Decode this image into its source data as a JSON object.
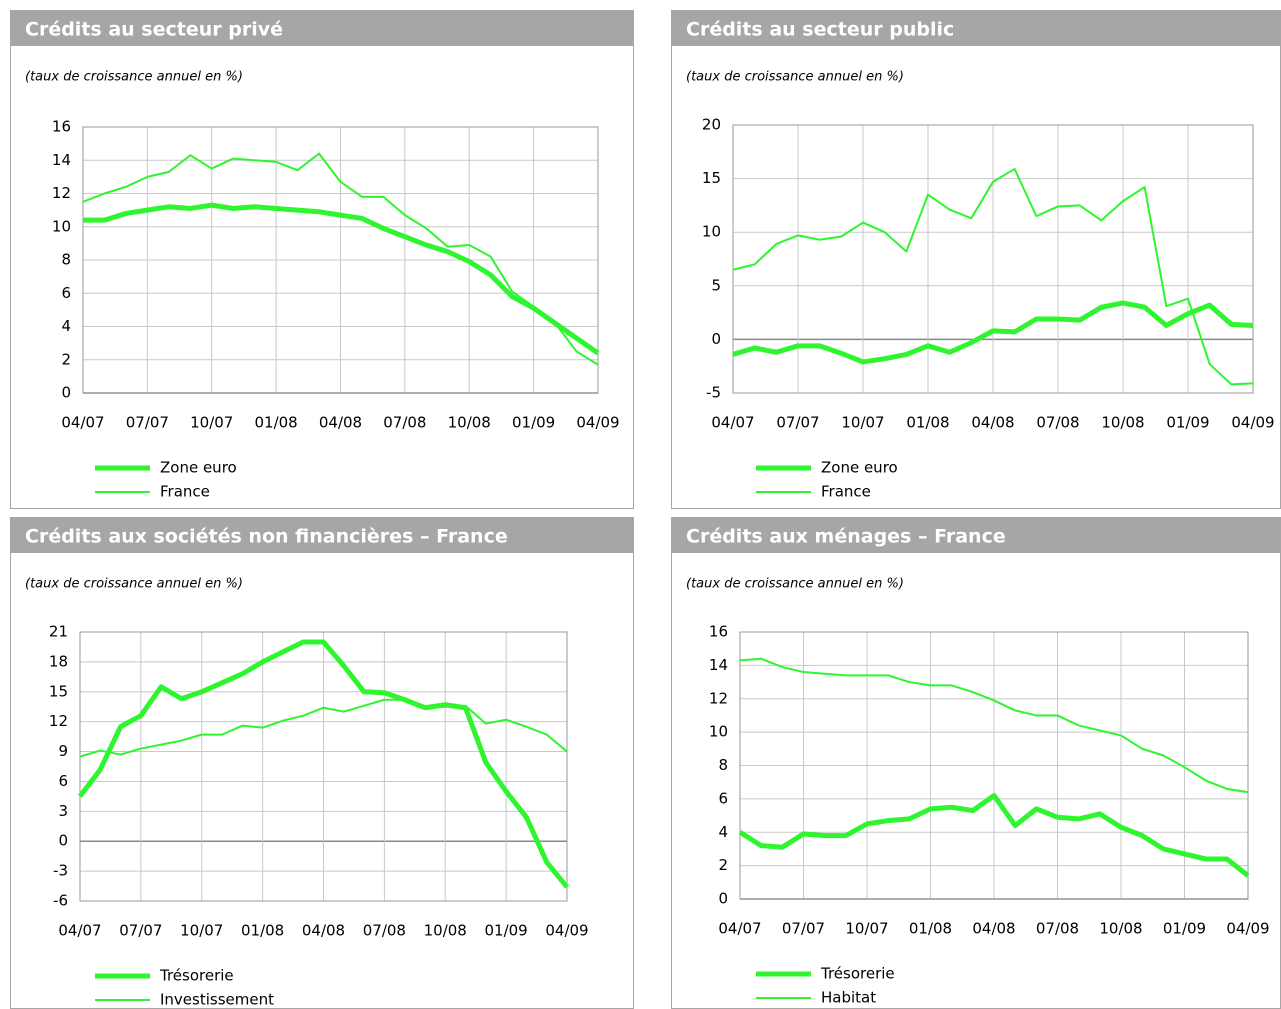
{
  "chart_data": [
    {
      "type": "line",
      "title": "Crédits au secteur privé",
      "subtitle": "(taux de croissance annuel en %)",
      "categories": [
        "04/07",
        null,
        null,
        "07/07",
        null,
        null,
        "10/07",
        null,
        null,
        "01/08",
        null,
        null,
        "04/08",
        null,
        null,
        "07/08",
        null,
        null,
        "10/08",
        null,
        null,
        "01/09",
        null,
        null,
        "04/09"
      ],
      "ylim": [
        0,
        16
      ],
      "yticks": [
        0,
        2,
        4,
        6,
        8,
        10,
        12,
        14,
        16
      ],
      "grid": true,
      "series": [
        {
          "name": "Zone euro",
          "color": "#2ef52e",
          "line_width": 5,
          "values": [
            10.4,
            10.4,
            10.8,
            11.0,
            11.2,
            11.1,
            11.3,
            11.1,
            11.2,
            11.1,
            11.0,
            10.9,
            10.7,
            10.5,
            9.9,
            9.4,
            8.9,
            8.5,
            7.9,
            7.1,
            5.8,
            5.1,
            4.2,
            3.3,
            2.4
          ]
        },
        {
          "name": "France",
          "color": "#2ef52e",
          "line_width": 2,
          "values": [
            11.5,
            12.0,
            12.4,
            13.0,
            13.3,
            14.3,
            13.5,
            14.1,
            14.0,
            13.9,
            13.4,
            14.4,
            12.7,
            11.8,
            11.8,
            10.7,
            9.9,
            8.8,
            8.9,
            8.2,
            6.1,
            5.2,
            4.2,
            2.5,
            1.7
          ]
        }
      ]
    },
    {
      "type": "line",
      "title": "Crédits au secteur public",
      "subtitle": "(taux de croissance annuel en %)",
      "categories": [
        "04/07",
        null,
        null,
        "07/07",
        null,
        null,
        "10/07",
        null,
        null,
        "01/08",
        null,
        null,
        "04/08",
        null,
        null,
        "07/08",
        null,
        null,
        "10/08",
        null,
        null,
        "01/09",
        null,
        null,
        "04/09"
      ],
      "ylim": [
        -5,
        20
      ],
      "yticks": [
        -5,
        0,
        5,
        10,
        15,
        20
      ],
      "grid": true,
      "series": [
        {
          "name": "Zone euro",
          "color": "#2ef52e",
          "line_width": 5,
          "values": [
            -1.4,
            -0.8,
            -1.2,
            -0.6,
            -0.6,
            -1.3,
            -2.1,
            -1.8,
            -1.4,
            -0.6,
            -1.2,
            -0.3,
            0.8,
            0.7,
            1.9,
            1.9,
            1.8,
            3.0,
            3.4,
            3.0,
            1.3,
            2.4,
            3.2,
            1.4,
            1.3
          ]
        },
        {
          "name": "France",
          "color": "#2ef52e",
          "line_width": 2,
          "values": [
            6.5,
            7.0,
            8.9,
            9.7,
            9.3,
            9.6,
            10.9,
            10.0,
            8.2,
            13.5,
            12.1,
            11.3,
            14.7,
            15.9,
            11.5,
            12.4,
            12.5,
            11.1,
            12.9,
            14.2,
            3.1,
            3.8,
            -2.3,
            -4.2,
            -4.1
          ]
        }
      ]
    },
    {
      "type": "line",
      "title": "Crédits aux sociétés non financières – France",
      "subtitle": "(taux de croissance annuel en %)",
      "categories": [
        "04/07",
        null,
        null,
        "07/07",
        null,
        null,
        "10/07",
        null,
        null,
        "01/08",
        null,
        null,
        "04/08",
        null,
        null,
        "07/08",
        null,
        null,
        "10/08",
        null,
        null,
        "01/09",
        null,
        null,
        "04/09"
      ],
      "ylim": [
        -6,
        21
      ],
      "yticks": [
        -6,
        -3,
        0,
        3,
        6,
        9,
        12,
        15,
        18,
        21
      ],
      "grid": true,
      "series": [
        {
          "name": "Trésorerie",
          "color": "#2ef52e",
          "line_width": 5,
          "values": [
            4.5,
            7.2,
            11.5,
            12.6,
            15.5,
            14.3,
            15.0,
            15.9,
            16.8,
            18.0,
            19.0,
            20.0,
            20.0,
            17.6,
            15.0,
            14.9,
            14.2,
            13.4,
            13.7,
            13.4,
            7.9,
            5.0,
            2.4,
            -2.1,
            -4.6
          ]
        },
        {
          "name": "Investissement",
          "color": "#2ef52e",
          "line_width": 2,
          "values": [
            8.5,
            9.1,
            8.7,
            9.3,
            9.7,
            10.1,
            10.7,
            10.7,
            11.6,
            11.4,
            12.1,
            12.6,
            13.4,
            13.0,
            13.6,
            14.2,
            14.2,
            13.4,
            13.5,
            13.6,
            11.8,
            12.2,
            11.5,
            10.7,
            9.0
          ]
        }
      ]
    },
    {
      "type": "line",
      "title": "Crédits aux ménages – France",
      "subtitle": "(taux de croissance annuel en %)",
      "categories": [
        "04/07",
        null,
        null,
        "07/07",
        null,
        null,
        "10/07",
        null,
        null,
        "01/08",
        null,
        null,
        "04/08",
        null,
        null,
        "07/08",
        null,
        null,
        "10/08",
        null,
        null,
        "01/09",
        null,
        null,
        "04/09"
      ],
      "ylim": [
        0,
        16
      ],
      "yticks": [
        0,
        2,
        4,
        6,
        8,
        10,
        12,
        14,
        16
      ],
      "grid": true,
      "series": [
        {
          "name": "Trésorerie",
          "color": "#2ef52e",
          "line_width": 5,
          "values": [
            4.0,
            3.2,
            3.1,
            3.9,
            3.8,
            3.8,
            4.5,
            4.7,
            4.8,
            5.4,
            5.5,
            5.3,
            6.2,
            4.4,
            5.4,
            4.9,
            4.8,
            5.1,
            4.3,
            3.8,
            3.0,
            2.7,
            2.4,
            2.4,
            1.4
          ]
        },
        {
          "name": "Habitat",
          "color": "#2ef52e",
          "line_width": 2,
          "values": [
            14.3,
            14.4,
            13.9,
            13.6,
            13.5,
            13.4,
            13.4,
            13.4,
            13.0,
            12.8,
            12.8,
            12.4,
            11.9,
            11.3,
            11.0,
            11.0,
            10.4,
            10.1,
            9.8,
            9.0,
            8.6,
            7.9,
            7.1,
            6.6,
            6.4
          ]
        }
      ]
    }
  ]
}
